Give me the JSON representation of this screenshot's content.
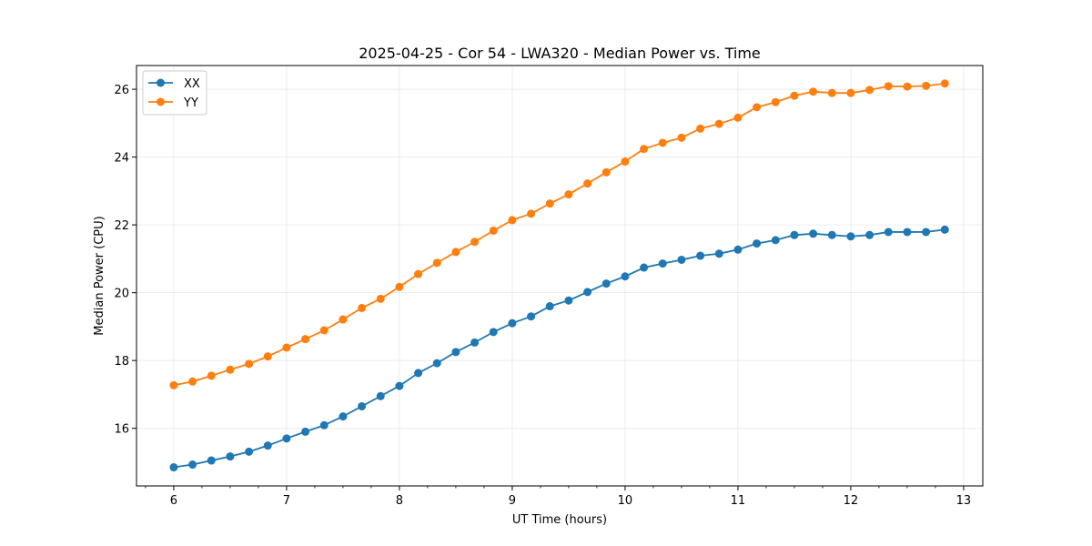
{
  "chart_data": {
    "type": "line",
    "title": "2025-04-25 - Cor 54 - LWA320 - Median Power vs. Time",
    "xlabel": "UT Time (hours)",
    "ylabel": "Median Power (CPU)",
    "xlim": [
      5.67,
      13.17
    ],
    "ylim": [
      14.3,
      26.7
    ],
    "xticks": [
      6,
      7,
      8,
      9,
      10,
      11,
      12,
      13
    ],
    "yticks": [
      16,
      18,
      20,
      22,
      24,
      26
    ],
    "xminor_step": 0.25,
    "grid": true,
    "legend_position": "upper-left",
    "x": [
      6.0,
      6.1667,
      6.3333,
      6.5,
      6.6667,
      6.8333,
      7.0,
      7.1667,
      7.3333,
      7.5,
      7.6667,
      7.8333,
      8.0,
      8.1667,
      8.3333,
      8.5,
      8.6667,
      8.8333,
      9.0,
      9.1667,
      9.3333,
      9.5,
      9.6667,
      9.8333,
      10.0,
      10.1667,
      10.3333,
      10.5,
      10.6667,
      10.8333,
      11.0,
      11.1667,
      11.3333,
      11.5,
      11.6667,
      11.8333,
      12.0,
      12.1667,
      12.3333,
      12.5,
      12.6667,
      12.8333
    ],
    "series": [
      {
        "name": "XX",
        "color": "#1f77b4",
        "values": [
          14.85,
          14.93,
          15.05,
          15.17,
          15.31,
          15.49,
          15.7,
          15.9,
          16.09,
          16.35,
          16.65,
          16.95,
          17.25,
          17.63,
          17.92,
          18.25,
          18.53,
          18.84,
          19.1,
          19.3,
          19.6,
          19.77,
          20.02,
          20.27,
          20.48,
          20.74,
          20.86,
          20.97,
          21.09,
          21.15,
          21.27,
          21.45,
          21.55,
          21.7,
          21.74,
          21.7,
          21.66,
          21.7,
          21.79,
          21.79,
          21.79,
          21.86
        ]
      },
      {
        "name": "YY",
        "color": "#ff7f0e",
        "values": [
          17.27,
          17.38,
          17.55,
          17.73,
          17.9,
          18.12,
          18.38,
          18.63,
          18.89,
          19.21,
          19.55,
          19.82,
          20.17,
          20.55,
          20.88,
          21.2,
          21.5,
          21.83,
          22.14,
          22.33,
          22.63,
          22.9,
          23.22,
          23.55,
          23.87,
          24.24,
          24.42,
          24.57,
          24.84,
          24.98,
          25.16,
          25.47,
          25.62,
          25.81,
          25.93,
          25.89,
          25.89,
          25.98,
          26.09,
          26.08,
          26.1,
          26.17
        ]
      }
    ]
  }
}
